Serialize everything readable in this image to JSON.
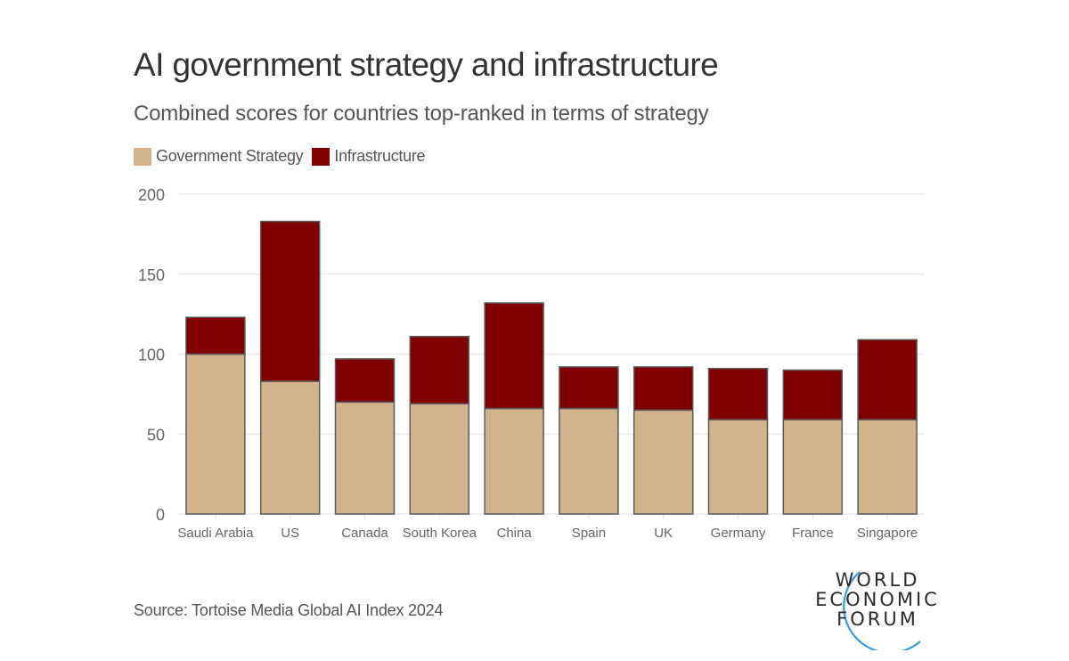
{
  "title": "AI government strategy and infrastructure",
  "subtitle": "Combined scores for countries top-ranked in terms of strategy",
  "source": "Source: Tortoise Media Global AI Index 2024",
  "logo": {
    "lines": [
      "WORLD",
      "ECONOMIC",
      "FORUM"
    ],
    "accent_color": "#3a9be0"
  },
  "colors": {
    "government_strategy": "#d2b48c",
    "infrastructure": "#800000",
    "gridline": "#e8e8e8",
    "tick_label": "#666666",
    "bar_stroke": "#5a5a5a"
  },
  "chart_data": {
    "type": "bar",
    "stacked": true,
    "title": "AI government strategy and infrastructure",
    "subtitle": "Combined scores for countries top-ranked in terms of strategy",
    "xlabel": "",
    "ylabel": "",
    "ylim": [
      0,
      200
    ],
    "yticks": [
      0,
      50,
      100,
      150,
      200
    ],
    "grid": true,
    "legend_position": "top-left",
    "categories": [
      "Saudi Arabia",
      "US",
      "Canada",
      "South Korea",
      "China",
      "Spain",
      "UK",
      "Germany",
      "France",
      "Singapore"
    ],
    "series": [
      {
        "name": "Government Strategy",
        "color": "#d2b48c",
        "values": [
          100,
          83,
          70,
          69,
          66,
          66,
          65,
          59,
          59,
          59
        ]
      },
      {
        "name": "Infrastructure",
        "color": "#800000",
        "values": [
          23,
          100,
          27,
          42,
          66,
          26,
          27,
          32,
          31,
          50
        ]
      }
    ],
    "totals": [
      123,
      183,
      97,
      111,
      132,
      92,
      92,
      91,
      90,
      109
    ]
  }
}
